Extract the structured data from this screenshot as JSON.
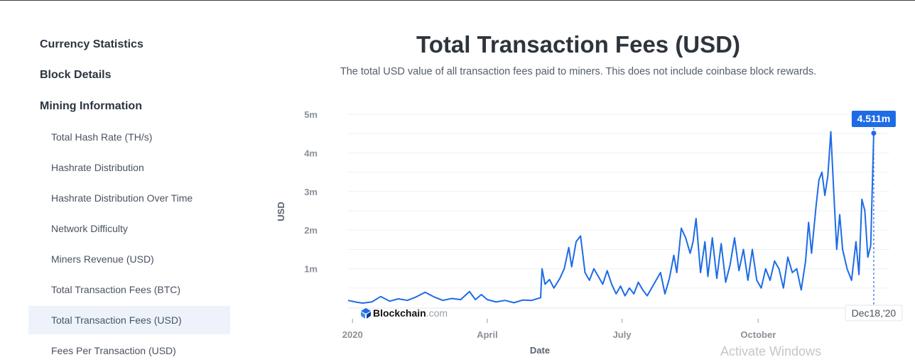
{
  "sidebar": {
    "sections": [
      "Currency Statistics",
      "Block Details",
      "Mining Information"
    ],
    "items": [
      "Total Hash Rate (TH/s)",
      "Hashrate Distribution",
      "Hashrate Distribution Over Time",
      "Network Difficulty",
      "Miners Revenue (USD)",
      "Total Transaction Fees (BTC)",
      "Total Transaction Fees (USD)",
      "Fees Per Transaction (USD)"
    ],
    "active_index": 6
  },
  "header": {
    "title": "Total Transaction Fees (USD)",
    "subtitle": "The total USD value of all transaction fees paid to miners. This does not include coinbase block rewards."
  },
  "watermark": "Activate Windows",
  "brand": {
    "name": "Blockchain",
    "suffix": ".com",
    "color": "#1e6be6"
  },
  "chart_data": {
    "type": "line",
    "title": "Total Transaction Fees (USD)",
    "xlabel": "Date",
    "ylabel": "USD",
    "ylim": [
      0,
      5000000
    ],
    "y_ticks": [
      {
        "value": 1000000,
        "label": "1m"
      },
      {
        "value": 2000000,
        "label": "2m"
      },
      {
        "value": 3000000,
        "label": "3m"
      },
      {
        "value": 4000000,
        "label": "4m"
      },
      {
        "value": 5000000,
        "label": "5m"
      }
    ],
    "x_ticks": [
      {
        "day": 1,
        "label": "2020"
      },
      {
        "day": 92,
        "label": "April"
      },
      {
        "day": 183,
        "label": "July"
      },
      {
        "day": 275,
        "label": "October"
      }
    ],
    "x_range_days": [
      -2,
      354
    ],
    "tooltip": {
      "value_label": "4.511m",
      "date_label": "Dec18,'20",
      "day": 353
    },
    "line_color": "#1e6be6",
    "grid": true,
    "x_unit": "day of year 2020",
    "points": [
      [
        -2,
        0.18
      ],
      [
        4,
        0.13
      ],
      [
        8,
        0.11
      ],
      [
        14,
        0.14
      ],
      [
        20,
        0.28
      ],
      [
        26,
        0.16
      ],
      [
        32,
        0.22
      ],
      [
        38,
        0.18
      ],
      [
        44,
        0.27
      ],
      [
        50,
        0.39
      ],
      [
        56,
        0.27
      ],
      [
        62,
        0.18
      ],
      [
        68,
        0.23
      ],
      [
        74,
        0.2
      ],
      [
        80,
        0.41
      ],
      [
        84,
        0.2
      ],
      [
        88,
        0.33
      ],
      [
        92,
        0.2
      ],
      [
        98,
        0.14
      ],
      [
        104,
        0.18
      ],
      [
        110,
        0.12
      ],
      [
        116,
        0.19
      ],
      [
        122,
        0.18
      ],
      [
        128,
        0.25
      ],
      [
        129,
        1.0
      ],
      [
        131,
        0.6
      ],
      [
        134,
        0.72
      ],
      [
        137,
        0.5
      ],
      [
        141,
        0.75
      ],
      [
        144,
        1.0
      ],
      [
        147,
        1.55
      ],
      [
        149,
        1.05
      ],
      [
        152,
        1.7
      ],
      [
        155,
        1.85
      ],
      [
        158,
        0.9
      ],
      [
        161,
        0.7
      ],
      [
        164,
        1.0
      ],
      [
        167,
        0.8
      ],
      [
        170,
        0.6
      ],
      [
        173,
        0.95
      ],
      [
        176,
        0.6
      ],
      [
        179,
        0.35
      ],
      [
        182,
        0.55
      ],
      [
        185,
        0.3
      ],
      [
        188,
        0.5
      ],
      [
        191,
        0.35
      ],
      [
        194,
        0.65
      ],
      [
        197,
        0.45
      ],
      [
        200,
        0.3
      ],
      [
        203,
        0.5
      ],
      [
        206,
        0.7
      ],
      [
        209,
        0.9
      ],
      [
        212,
        0.35
      ],
      [
        215,
        0.75
      ],
      [
        218,
        1.35
      ],
      [
        220,
        0.9
      ],
      [
        223,
        2.05
      ],
      [
        226,
        1.8
      ],
      [
        229,
        1.4
      ],
      [
        231,
        1.7
      ],
      [
        233,
        2.3
      ],
      [
        236,
        0.9
      ],
      [
        239,
        1.7
      ],
      [
        241,
        0.8
      ],
      [
        244,
        1.8
      ],
      [
        247,
        0.75
      ],
      [
        250,
        1.65
      ],
      [
        253,
        0.65
      ],
      [
        256,
        1.1
      ],
      [
        259,
        1.8
      ],
      [
        262,
        0.95
      ],
      [
        265,
        1.5
      ],
      [
        268,
        0.7
      ],
      [
        271,
        1.5
      ],
      [
        274,
        0.7
      ],
      [
        277,
        0.5
      ],
      [
        280,
        1.0
      ],
      [
        283,
        0.7
      ],
      [
        286,
        1.2
      ],
      [
        289,
        1.0
      ],
      [
        292,
        0.5
      ],
      [
        295,
        1.3
      ],
      [
        298,
        0.9
      ],
      [
        301,
        1.0
      ],
      [
        304,
        0.45
      ],
      [
        307,
        1.2
      ],
      [
        309,
        2.2
      ],
      [
        311,
        1.4
      ],
      [
        314,
        2.6
      ],
      [
        316,
        3.3
      ],
      [
        318,
        3.5
      ],
      [
        320,
        2.9
      ],
      [
        322,
        3.4
      ],
      [
        324,
        4.55
      ],
      [
        326,
        3.0
      ],
      [
        328,
        1.5
      ],
      [
        330,
        2.4
      ],
      [
        332,
        1.5
      ],
      [
        335,
        1.0
      ],
      [
        338,
        0.7
      ],
      [
        341,
        1.7
      ],
      [
        343,
        0.85
      ],
      [
        345,
        2.8
      ],
      [
        347,
        2.5
      ],
      [
        349,
        1.3
      ],
      [
        351,
        1.6
      ],
      [
        353,
        4.51
      ]
    ]
  }
}
